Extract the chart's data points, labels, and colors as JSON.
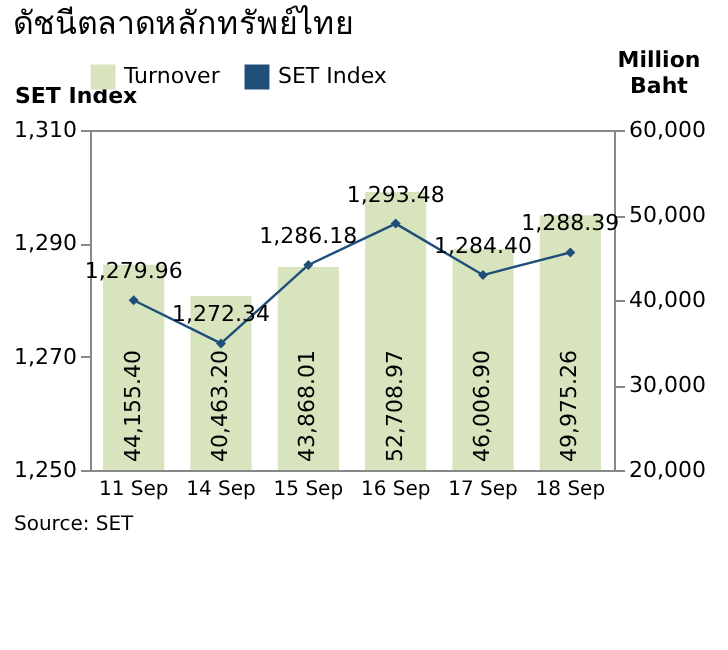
{
  "chart_data": {
    "type": "bar",
    "title": "ดัชนีตลาดหลักทรัพย์ไทย",
    "categories": [
      "11 Sep",
      "14 Sep",
      "15 Sep",
      "16 Sep",
      "17 Sep",
      "18 Sep"
    ],
    "series": [
      {
        "name": "Turnover",
        "axis": "y2",
        "color": "#d7e4bd",
        "values": [
          44155.4,
          40463.2,
          43868.01,
          52708.97,
          46006.9,
          49975.26
        ],
        "value_labels": [
          "44,155.40",
          "40,463.20",
          "43,868.01",
          "52,708.97",
          "46,006.90",
          "49,975.26"
        ]
      },
      {
        "name": "SET Index",
        "type": "line",
        "color": "#1f4e79",
        "marker": "diamond",
        "values": [
          1279.96,
          1272.34,
          1286.18,
          1293.48,
          1284.4,
          1288.39
        ],
        "value_labels": [
          "1,279.96",
          "1,272.34",
          "1,286.18",
          "1,293.48",
          "1,284.40",
          "1,288.39"
        ]
      }
    ],
    "ylabel": "SET Index",
    "y2label": "Million Baht",
    "ylim": [
      1250,
      1310
    ],
    "yticks": [
      {
        "value": 1250,
        "label": "1,250"
      },
      {
        "value": 1270,
        "label": "1,270"
      },
      {
        "value": 1290,
        "label": "1,290"
      },
      {
        "value": 1310,
        "label": "1,310"
      }
    ],
    "y2lim": [
      20000,
      60000
    ],
    "y2ticks": [
      {
        "value": 20000,
        "label": "20,000"
      },
      {
        "value": 30000,
        "label": "30,000"
      },
      {
        "value": 40000,
        "label": "40,000"
      },
      {
        "value": 50000,
        "label": "50,000"
      },
      {
        "value": 60000,
        "label": "60,000"
      }
    ],
    "legend": "top",
    "grid": false,
    "annotations": [
      "Source: SET"
    ]
  }
}
